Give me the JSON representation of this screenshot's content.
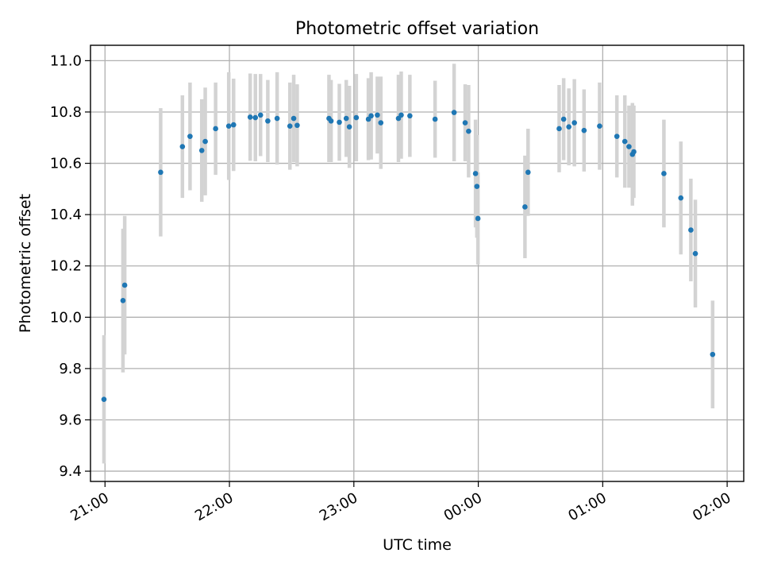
{
  "chart_data": {
    "type": "scatter",
    "title": "Photometric offset variation",
    "xlabel": "UTC time",
    "ylabel": "Photometric offset",
    "xlim": [
      "20:53",
      "02:08"
    ],
    "ylim": [
      9.36,
      11.06
    ],
    "x_ticks": [
      "21:00",
      "22:00",
      "23:00",
      "00:00",
      "01:00",
      "02:00"
    ],
    "y_ticks": [
      "9.4",
      "9.6",
      "9.8",
      "10.0",
      "10.2",
      "10.4",
      "10.6",
      "10.8",
      "11.0"
    ],
    "grid": true,
    "colors": {
      "points": "#1f77b4",
      "error_bars": "#d3d3d3",
      "grid": "#b0b0b0"
    },
    "series": [
      {
        "x": [
          "20:59:30",
          "21:08:40",
          "21:09:30",
          "21:26:50",
          "21:37:20",
          "21:41:00",
          "21:46:40",
          "21:48:20",
          "21:53:20",
          "21:59:40",
          "22:02:00",
          "22:10:00",
          "22:12:30",
          "22:15:00",
          "22:18:30",
          "22:23:00",
          "22:29:10",
          "22:31:00",
          "22:32:40",
          "22:48:00",
          "22:49:00",
          "22:53:00",
          "22:56:20",
          "22:57:50",
          "23:01:10",
          "23:07:00",
          "23:08:20",
          "23:11:20",
          "23:13:00",
          "23:21:30",
          "23:22:50",
          "23:27:00",
          "23:39:10",
          "23:48:20",
          "23:53:40",
          "23:55:20",
          "23:58:40",
          "23:59:20",
          "23:59:50",
          "00:22:30",
          "00:24:00",
          "00:39:00",
          "00:41:10",
          "00:43:40",
          "00:46:20",
          "00:51:00",
          "00:58:30",
          "01:06:50",
          "01:10:40",
          "01:12:40",
          "01:14:20",
          "01:15:00",
          "01:29:30",
          "01:37:40",
          "01:42:30",
          "01:44:40",
          "01:53:00"
        ],
        "y": [
          9.68,
          10.065,
          10.125,
          10.565,
          10.665,
          10.705,
          10.65,
          10.685,
          10.735,
          10.745,
          10.75,
          10.78,
          10.778,
          10.788,
          10.765,
          10.775,
          10.745,
          10.775,
          10.748,
          10.775,
          10.765,
          10.76,
          10.775,
          10.742,
          10.778,
          10.772,
          10.785,
          10.788,
          10.758,
          10.775,
          10.788,
          10.785,
          10.772,
          10.798,
          10.758,
          10.725,
          10.56,
          10.51,
          10.385,
          10.43,
          10.565,
          10.735,
          10.772,
          10.742,
          10.758,
          10.728,
          10.745,
          10.705,
          10.685,
          10.665,
          10.635,
          10.645,
          10.56,
          10.465,
          10.34,
          10.248,
          9.855
        ],
        "yerr": [
          0.25,
          0.28,
          0.27,
          0.25,
          0.2,
          0.21,
          0.2,
          0.21,
          0.18,
          0.21,
          0.18,
          0.17,
          0.17,
          0.16,
          0.16,
          0.18,
          0.17,
          0.17,
          0.16,
          0.17,
          0.16,
          0.15,
          0.15,
          0.16,
          0.17,
          0.16,
          0.17,
          0.15,
          0.18,
          0.17,
          0.17,
          0.16,
          0.15,
          0.19,
          0.15,
          0.18,
          0.21,
          0.2,
          0.18,
          0.2,
          0.17,
          0.17,
          0.16,
          0.15,
          0.17,
          0.16,
          0.17,
          0.16,
          0.18,
          0.16,
          0.2,
          0.18,
          0.21,
          0.22,
          0.2,
          0.21,
          0.21
        ]
      }
    ]
  }
}
